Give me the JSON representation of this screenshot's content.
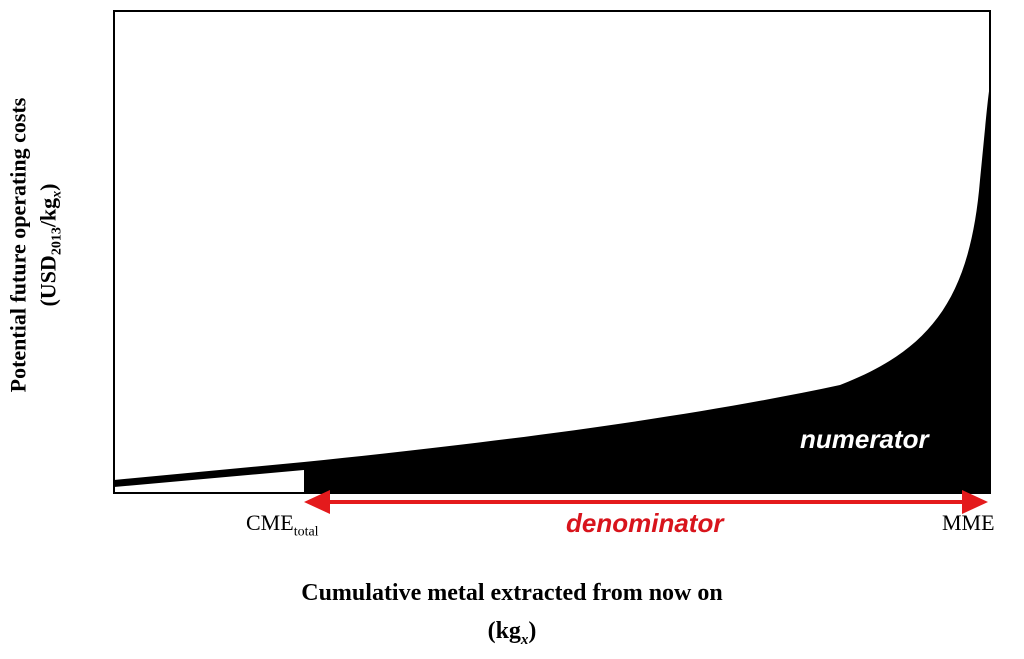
{
  "ylabel": {
    "line1": "Potential future operating costs",
    "prefix": "(USD",
    "sub": "2013",
    "middle": "/kg",
    "sub2": "x",
    "suffix": ")"
  },
  "xlabel": {
    "line1": "Cumulative metal extracted from now on",
    "prefix": "(kg",
    "sub": "x",
    "suffix": ")"
  },
  "ticks": {
    "cme_main": "CME",
    "cme_sub": "total",
    "mme": "MME"
  },
  "annotations": {
    "numerator": "numerator",
    "denominator": "denominator"
  },
  "colors": {
    "area": "#000000",
    "arrow": "#e41a1c",
    "denominator_text": "#d8141c",
    "axis": "#000000"
  }
}
